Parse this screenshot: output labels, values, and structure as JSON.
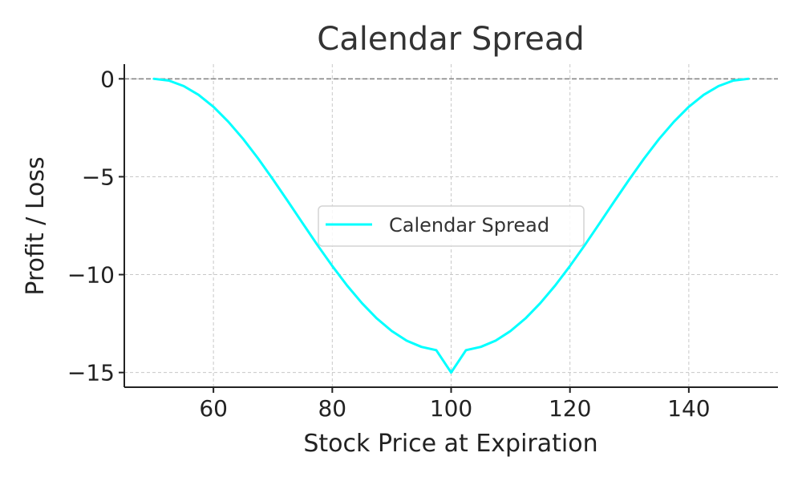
{
  "chart_data": {
    "type": "line",
    "title": "Calendar Spread",
    "xlabel": "Stock Price at Expiration",
    "ylabel": "Profit / Loss",
    "xlim": [
      45,
      155
    ],
    "ylim": [
      -15.75,
      0.75
    ],
    "xticks": [
      60,
      80,
      100,
      120,
      140
    ],
    "yticks": [
      0,
      -5,
      -10,
      -15
    ],
    "xtick_labels": [
      "60",
      "80",
      "100",
      "120",
      "140"
    ],
    "ytick_labels": [
      "0",
      "−5",
      "−10",
      "−15"
    ],
    "grid": true,
    "legend_position": "center",
    "zero_line": true,
    "series": [
      {
        "name": "Calendar Spread",
        "color": "#00ffff",
        "x": [
          50,
          52.5,
          55,
          57.5,
          60,
          62.5,
          65,
          67.5,
          70,
          72.5,
          75,
          77.5,
          80,
          82.5,
          85,
          87.5,
          90,
          92.5,
          95,
          97.5,
          100,
          102.5,
          105,
          107.5,
          110,
          112.5,
          115,
          117.5,
          120,
          122.5,
          125,
          127.5,
          130,
          132.5,
          135,
          137.5,
          140,
          142.5,
          145,
          147.5,
          150
        ],
        "y": [
          0,
          -0.09,
          -0.37,
          -0.82,
          -1.43,
          -2.19,
          -3.07,
          -4.06,
          -5.13,
          -6.24,
          -7.37,
          -8.49,
          -9.56,
          -10.56,
          -11.46,
          -12.24,
          -12.88,
          -13.37,
          -13.69,
          -13.86,
          -15.0,
          -13.86,
          -13.69,
          -13.37,
          -12.88,
          -12.24,
          -11.46,
          -10.56,
          -9.56,
          -8.49,
          -7.37,
          -6.24,
          -5.13,
          -4.06,
          -3.07,
          -2.19,
          -1.43,
          -0.82,
          -0.37,
          -0.09,
          0
        ]
      }
    ]
  },
  "colors": {
    "series": "#00ffff",
    "grid": "#c8c8c8",
    "zero_line": "#808080",
    "axis": "#222222"
  }
}
